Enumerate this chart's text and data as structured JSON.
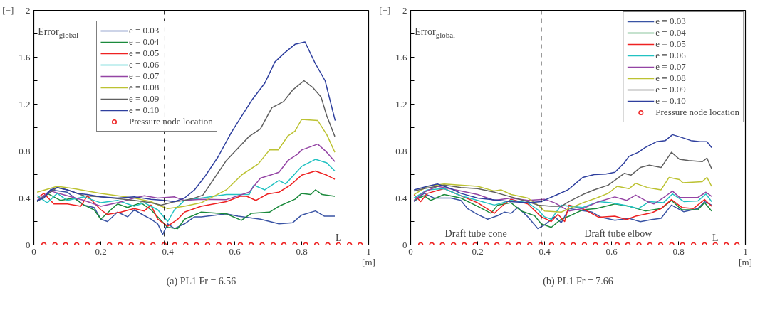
{
  "chart_data": [
    {
      "type": "line",
      "title": "(a) PL1 Fr = 6.56",
      "xlabel": "[m]",
      "ylabel": "[−]",
      "xlim": [
        0,
        1
      ],
      "ylim": [
        0,
        2
      ],
      "xticks": [
        0,
        0.2,
        0.4,
        0.6,
        0.8,
        1
      ],
      "yticks": [
        0,
        {
          "value": 0.2,
          "label": null
        },
        0.4,
        {
          "value": 0.6,
          "label": null
        },
        0.8,
        {
          "value": 1.0,
          "label": null
        },
        1.2,
        {
          "value": 1.4,
          "label": null
        },
        1.6,
        {
          "value": 1.8,
          "label": null
        },
        2
      ],
      "grid": false,
      "legend": "top left",
      "marker": "none",
      "line_style": "solid",
      "annotations": [
        "Error$_{global}$",
        "L"
      ],
      "ref_lines": [
        {
          "axis": "x",
          "value": 0.39,
          "label": null,
          "color": "#000000",
          "line_style": "dashed"
        }
      ],
      "series": [
        {
          "name": "e = 0.03",
          "color": "#3953a4",
          "x": [
            0.01,
            0.05,
            0.1,
            0.15,
            0.18,
            0.2,
            0.22,
            0.25,
            0.28,
            0.3,
            0.33,
            0.35,
            0.37,
            0.385,
            0.4,
            0.42,
            0.45,
            0.48,
            0.5,
            0.575,
            0.61,
            0.677,
            0.732,
            0.773,
            0.8,
            0.841,
            0.868,
            0.899
          ],
          "values": [
            0.37,
            0.47,
            0.45,
            0.34,
            0.32,
            0.22,
            0.2,
            0.28,
            0.24,
            0.3,
            0.25,
            0.22,
            0.18,
            0.09,
            0.18,
            0.14,
            0.18,
            0.24,
            0.24,
            0.265,
            0.245,
            0.22,
            0.18,
            0.19,
            0.255,
            0.29,
            0.245,
            0.245
          ]
        },
        {
          "name": "e = 0.04",
          "color": "#1b8a3c",
          "x": [
            0.01,
            0.04,
            0.08,
            0.12,
            0.15,
            0.18,
            0.2,
            0.23,
            0.25,
            0.28,
            0.32,
            0.35,
            0.37,
            0.4,
            0.43,
            0.45,
            0.5,
            0.575,
            0.62,
            0.65,
            0.704,
            0.732,
            0.78,
            0.8,
            0.827,
            0.841,
            0.861,
            0.899
          ],
          "values": [
            0.37,
            0.44,
            0.38,
            0.4,
            0.34,
            0.3,
            0.22,
            0.3,
            0.35,
            0.32,
            0.36,
            0.3,
            0.24,
            0.15,
            0.14,
            0.22,
            0.28,
            0.265,
            0.21,
            0.27,
            0.28,
            0.33,
            0.39,
            0.44,
            0.43,
            0.47,
            0.43,
            0.415
          ]
        },
        {
          "name": "e = 0.05",
          "color": "#ee2222",
          "x": [
            0.01,
            0.03,
            0.06,
            0.1,
            0.14,
            0.16,
            0.2,
            0.22,
            0.26,
            0.3,
            0.33,
            0.35,
            0.37,
            0.4,
            0.43,
            0.45,
            0.5,
            0.575,
            0.616,
            0.636,
            0.663,
            0.698,
            0.732,
            0.766,
            0.8,
            0.841,
            0.875,
            0.899
          ],
          "values": [
            0.4,
            0.44,
            0.35,
            0.35,
            0.33,
            0.42,
            0.3,
            0.26,
            0.28,
            0.31,
            0.29,
            0.34,
            0.22,
            0.16,
            0.22,
            0.28,
            0.33,
            0.37,
            0.415,
            0.415,
            0.38,
            0.435,
            0.45,
            0.51,
            0.595,
            0.63,
            0.595,
            0.56
          ]
        },
        {
          "name": "e = 0.06",
          "color": "#22c2c2",
          "x": [
            0.01,
            0.04,
            0.07,
            0.1,
            0.15,
            0.2,
            0.25,
            0.3,
            0.33,
            0.37,
            0.4,
            0.42,
            0.45,
            0.5,
            0.575,
            0.643,
            0.657,
            0.69,
            0.732,
            0.752,
            0.8,
            0.841,
            0.875,
            0.899
          ],
          "values": [
            0.42,
            0.36,
            0.44,
            0.38,
            0.41,
            0.36,
            0.38,
            0.33,
            0.36,
            0.3,
            0.2,
            0.3,
            0.38,
            0.4,
            0.43,
            0.43,
            0.51,
            0.47,
            0.55,
            0.52,
            0.67,
            0.73,
            0.7,
            0.63
          ]
        },
        {
          "name": "e = 0.07",
          "color": "#9444a4",
          "x": [
            0.01,
            0.05,
            0.1,
            0.15,
            0.2,
            0.25,
            0.3,
            0.33,
            0.37,
            0.42,
            0.45,
            0.5,
            0.575,
            0.643,
            0.677,
            0.711,
            0.732,
            0.759,
            0.786,
            0.8,
            0.848,
            0.875,
            0.899
          ],
          "values": [
            0.38,
            0.46,
            0.42,
            0.38,
            0.33,
            0.36,
            0.4,
            0.42,
            0.4,
            0.41,
            0.38,
            0.39,
            0.387,
            0.45,
            0.57,
            0.6,
            0.62,
            0.72,
            0.77,
            0.81,
            0.86,
            0.79,
            0.71
          ]
        },
        {
          "name": "e = 0.08",
          "color": "#bcc232",
          "x": [
            0.01,
            0.07,
            0.12,
            0.2,
            0.3,
            0.35,
            0.38,
            0.4,
            0.45,
            0.5,
            0.575,
            0.622,
            0.67,
            0.704,
            0.73,
            0.759,
            0.78,
            0.8,
            0.848,
            0.875,
            0.899
          ],
          "values": [
            0.45,
            0.5,
            0.48,
            0.44,
            0.4,
            0.37,
            0.33,
            0.31,
            0.33,
            0.36,
            0.47,
            0.6,
            0.69,
            0.81,
            0.81,
            0.93,
            0.97,
            1.07,
            1.06,
            0.94,
            0.79
          ]
        },
        {
          "name": "e = 0.09",
          "color": "#606060",
          "x": [
            0.01,
            0.07,
            0.1,
            0.15,
            0.2,
            0.3,
            0.35,
            0.38,
            0.42,
            0.45,
            0.48,
            0.505,
            0.575,
            0.643,
            0.677,
            0.711,
            0.745,
            0.773,
            0.807,
            0.834,
            0.858,
            0.875,
            0.899
          ],
          "values": [
            0.37,
            0.49,
            0.47,
            0.42,
            0.41,
            0.38,
            0.36,
            0.34,
            0.37,
            0.38,
            0.4,
            0.425,
            0.72,
            0.925,
            0.99,
            1.17,
            1.22,
            1.32,
            1.4,
            1.34,
            1.26,
            1.1,
            0.925
          ]
        },
        {
          "name": "e = 0.10",
          "color": "#2e3f9e",
          "x": [
            0.01,
            0.03,
            0.05,
            0.07,
            0.1,
            0.13,
            0.16,
            0.2,
            0.25,
            0.3,
            0.35,
            0.39,
            0.42,
            0.45,
            0.48,
            0.51,
            0.55,
            0.59,
            0.65,
            0.69,
            0.72,
            0.75,
            0.78,
            0.81,
            0.84,
            0.87,
            0.9
          ],
          "values": [
            0.38,
            0.4,
            0.47,
            0.49,
            0.47,
            0.44,
            0.43,
            0.41,
            0.4,
            0.41,
            0.39,
            0.38,
            0.37,
            0.4,
            0.47,
            0.58,
            0.75,
            0.96,
            1.23,
            1.38,
            1.56,
            1.64,
            1.71,
            1.73,
            1.55,
            1.4,
            1.06
          ]
        },
        {
          "name": "Pressure node location",
          "type": "scatter",
          "marker": "circle",
          "color": "#ee2222",
          "x": [
            0.03,
            0.063,
            0.095,
            0.128,
            0.16,
            0.193,
            0.226,
            0.258,
            0.291,
            0.323,
            0.356,
            0.389,
            0.421,
            0.454,
            0.486,
            0.519,
            0.552,
            0.584,
            0.617,
            0.649,
            0.682,
            0.715,
            0.747,
            0.78,
            0.812,
            0.845,
            0.878,
            0.91,
            0.943,
            0.975
          ],
          "values": [
            0,
            0,
            0,
            0,
            0,
            0,
            0,
            0,
            0,
            0,
            0,
            0,
            0,
            0,
            0,
            0,
            0,
            0,
            0,
            0,
            0,
            0,
            0,
            0,
            0,
            0,
            0,
            0,
            0,
            0
          ]
        }
      ]
    },
    {
      "type": "line",
      "title": "(b) PL1 Fr = 7.66",
      "xlabel": "[m]",
      "ylabel": "[−]",
      "xlim": [
        0,
        1
      ],
      "ylim": [
        0,
        2
      ],
      "xticks": [
        0,
        0.2,
        0.4,
        0.6,
        0.8,
        1
      ],
      "yticks": [
        0,
        {
          "value": 0.2,
          "label": null
        },
        0.4,
        {
          "value": 0.6,
          "label": null
        },
        0.8,
        {
          "value": 1.0,
          "label": null
        },
        1.2,
        {
          "value": 1.4,
          "label": null
        },
        1.6,
        {
          "value": 1.8,
          "label": null
        },
        2
      ],
      "grid": false,
      "legend": "top right",
      "marker": "none",
      "line_style": "solid",
      "annotations": [
        "Error$_{global}$",
        "Draft tube cone",
        "Draft tube elbow",
        "L"
      ],
      "ref_lines": [
        {
          "axis": "x",
          "value": 0.39,
          "label": null,
          "color": "#000000",
          "line_style": "dashed"
        }
      ],
      "series": [
        {
          "name": "e = 0.03",
          "color": "#3953a4",
          "x": [
            0.01,
            0.04,
            0.07,
            0.12,
            0.15,
            0.17,
            0.2,
            0.23,
            0.26,
            0.28,
            0.3,
            0.32,
            0.35,
            0.38,
            0.4,
            0.43,
            0.45,
            0.473,
            0.542,
            0.569,
            0.61,
            0.652,
            0.686,
            0.72,
            0.748,
            0.779,
            0.816,
            0.858,
            0.878,
            0.899
          ],
          "values": [
            0.37,
            0.44,
            0.4,
            0.4,
            0.38,
            0.31,
            0.26,
            0.22,
            0.25,
            0.28,
            0.27,
            0.32,
            0.24,
            0.14,
            0.17,
            0.24,
            0.19,
            0.31,
            0.28,
            0.236,
            0.21,
            0.227,
            0.198,
            0.217,
            0.227,
            0.34,
            0.283,
            0.31,
            0.37,
            0.34
          ]
        },
        {
          "name": "e = 0.04",
          "color": "#1b8a3c",
          "x": [
            0.01,
            0.04,
            0.06,
            0.1,
            0.15,
            0.2,
            0.24,
            0.26,
            0.3,
            0.33,
            0.37,
            0.39,
            0.42,
            0.45,
            0.473,
            0.514,
            0.555,
            0.61,
            0.652,
            0.7,
            0.748,
            0.779,
            0.81,
            0.858,
            0.878,
            0.899
          ],
          "values": [
            0.38,
            0.42,
            0.38,
            0.43,
            0.4,
            0.33,
            0.27,
            0.34,
            0.36,
            0.29,
            0.25,
            0.18,
            0.15,
            0.22,
            0.245,
            0.3,
            0.31,
            0.35,
            0.33,
            0.29,
            0.31,
            0.38,
            0.3,
            0.3,
            0.36,
            0.29
          ]
        },
        {
          "name": "e = 0.05",
          "color": "#ee2222",
          "x": [
            0.01,
            0.03,
            0.05,
            0.1,
            0.15,
            0.2,
            0.25,
            0.28,
            0.3,
            0.35,
            0.39,
            0.42,
            0.44,
            0.46,
            0.473,
            0.514,
            0.562,
            0.61,
            0.645,
            0.672,
            0.72,
            0.748,
            0.779,
            0.81,
            0.844,
            0.878,
            0.899
          ],
          "values": [
            0.43,
            0.37,
            0.44,
            0.48,
            0.42,
            0.36,
            0.27,
            0.35,
            0.39,
            0.35,
            0.24,
            0.2,
            0.26,
            0.2,
            0.34,
            0.31,
            0.236,
            0.245,
            0.217,
            0.245,
            0.274,
            0.31,
            0.387,
            0.32,
            0.31,
            0.387,
            0.33
          ]
        },
        {
          "name": "e = 0.06",
          "color": "#22c2c2",
          "x": [
            0.01,
            0.05,
            0.1,
            0.15,
            0.2,
            0.25,
            0.3,
            0.35,
            0.38,
            0.4,
            0.42,
            0.45,
            0.473,
            0.514,
            0.562,
            0.597,
            0.638,
            0.68,
            0.713,
            0.755,
            0.782,
            0.816,
            0.858,
            0.882,
            0.899
          ],
          "values": [
            0.4,
            0.47,
            0.48,
            0.42,
            0.38,
            0.34,
            0.38,
            0.36,
            0.3,
            0.24,
            0.22,
            0.34,
            0.33,
            0.32,
            0.37,
            0.36,
            0.34,
            0.31,
            0.37,
            0.36,
            0.435,
            0.37,
            0.375,
            0.435,
            0.37
          ]
        },
        {
          "name": "e = 0.07",
          "color": "#9444a4",
          "x": [
            0.01,
            0.04,
            0.08,
            0.15,
            0.2,
            0.25,
            0.3,
            0.35,
            0.4,
            0.43,
            0.473,
            0.514,
            0.562,
            0.61,
            0.645,
            0.672,
            0.707,
            0.727,
            0.761,
            0.782,
            0.803,
            0.858,
            0.882,
            0.899
          ],
          "values": [
            0.38,
            0.45,
            0.5,
            0.46,
            0.43,
            0.38,
            0.4,
            0.38,
            0.39,
            0.36,
            0.29,
            0.31,
            0.37,
            0.41,
            0.38,
            0.425,
            0.37,
            0.35,
            0.415,
            0.46,
            0.405,
            0.405,
            0.45,
            0.415
          ]
        },
        {
          "name": "e = 0.08",
          "color": "#bcc232",
          "x": [
            0.01,
            0.05,
            0.1,
            0.2,
            0.25,
            0.27,
            0.3,
            0.35,
            0.38,
            0.4,
            0.45,
            0.473,
            0.514,
            0.555,
            0.59,
            0.617,
            0.652,
            0.672,
            0.707,
            0.748,
            0.772,
            0.803,
            0.813,
            0.871,
            0.885,
            0.899
          ],
          "values": [
            0.43,
            0.5,
            0.52,
            0.5,
            0.46,
            0.47,
            0.43,
            0.4,
            0.34,
            0.29,
            0.28,
            0.31,
            0.36,
            0.4,
            0.44,
            0.5,
            0.48,
            0.525,
            0.49,
            0.47,
            0.576,
            0.557,
            0.53,
            0.54,
            0.576,
            0.5
          ]
        },
        {
          "name": "e = 0.09",
          "color": "#606060",
          "x": [
            0.01,
            0.04,
            0.1,
            0.15,
            0.2,
            0.25,
            0.3,
            0.35,
            0.38,
            0.42,
            0.45,
            0.473,
            0.514,
            0.548,
            0.59,
            0.638,
            0.658,
            0.686,
            0.713,
            0.748,
            0.779,
            0.803,
            0.83,
            0.871,
            0.885,
            0.899
          ],
          "values": [
            0.46,
            0.48,
            0.51,
            0.49,
            0.48,
            0.45,
            0.41,
            0.37,
            0.34,
            0.33,
            0.33,
            0.37,
            0.43,
            0.47,
            0.51,
            0.61,
            0.595,
            0.66,
            0.68,
            0.66,
            0.79,
            0.73,
            0.72,
            0.71,
            0.74,
            0.65
          ]
        },
        {
          "name": "e = 0.10",
          "color": "#2e3f9e",
          "x": [
            0.01,
            0.05,
            0.08,
            0.12,
            0.15,
            0.2,
            0.3,
            0.35,
            0.39,
            0.43,
            0.47,
            0.514,
            0.548,
            0.583,
            0.61,
            0.638,
            0.652,
            0.68,
            0.7,
            0.734,
            0.761,
            0.782,
            0.81,
            0.837,
            0.865,
            0.885,
            0.899
          ],
          "values": [
            0.47,
            0.5,
            0.52,
            0.48,
            0.44,
            0.4,
            0.37,
            0.36,
            0.37,
            0.42,
            0.47,
            0.576,
            0.6,
            0.604,
            0.62,
            0.7,
            0.755,
            0.79,
            0.83,
            0.88,
            0.89,
            0.94,
            0.916,
            0.89,
            0.88,
            0.88,
            0.83
          ]
        },
        {
          "name": "Pressure node location",
          "type": "scatter",
          "marker": "circle",
          "color": "#ee2222",
          "x": [
            0.03,
            0.063,
            0.095,
            0.128,
            0.16,
            0.193,
            0.226,
            0.258,
            0.291,
            0.323,
            0.356,
            0.389,
            0.421,
            0.454,
            0.486,
            0.519,
            0.552,
            0.584,
            0.617,
            0.649,
            0.682,
            0.715,
            0.747,
            0.78,
            0.812,
            0.845,
            0.878,
            0.91,
            0.943,
            0.975
          ],
          "values": [
            0,
            0,
            0,
            0,
            0,
            0,
            0,
            0,
            0,
            0,
            0,
            0,
            0,
            0,
            0,
            0,
            0,
            0,
            0,
            0,
            0,
            0,
            0,
            0,
            0,
            0,
            0,
            0,
            0,
            0
          ]
        }
      ]
    }
  ]
}
